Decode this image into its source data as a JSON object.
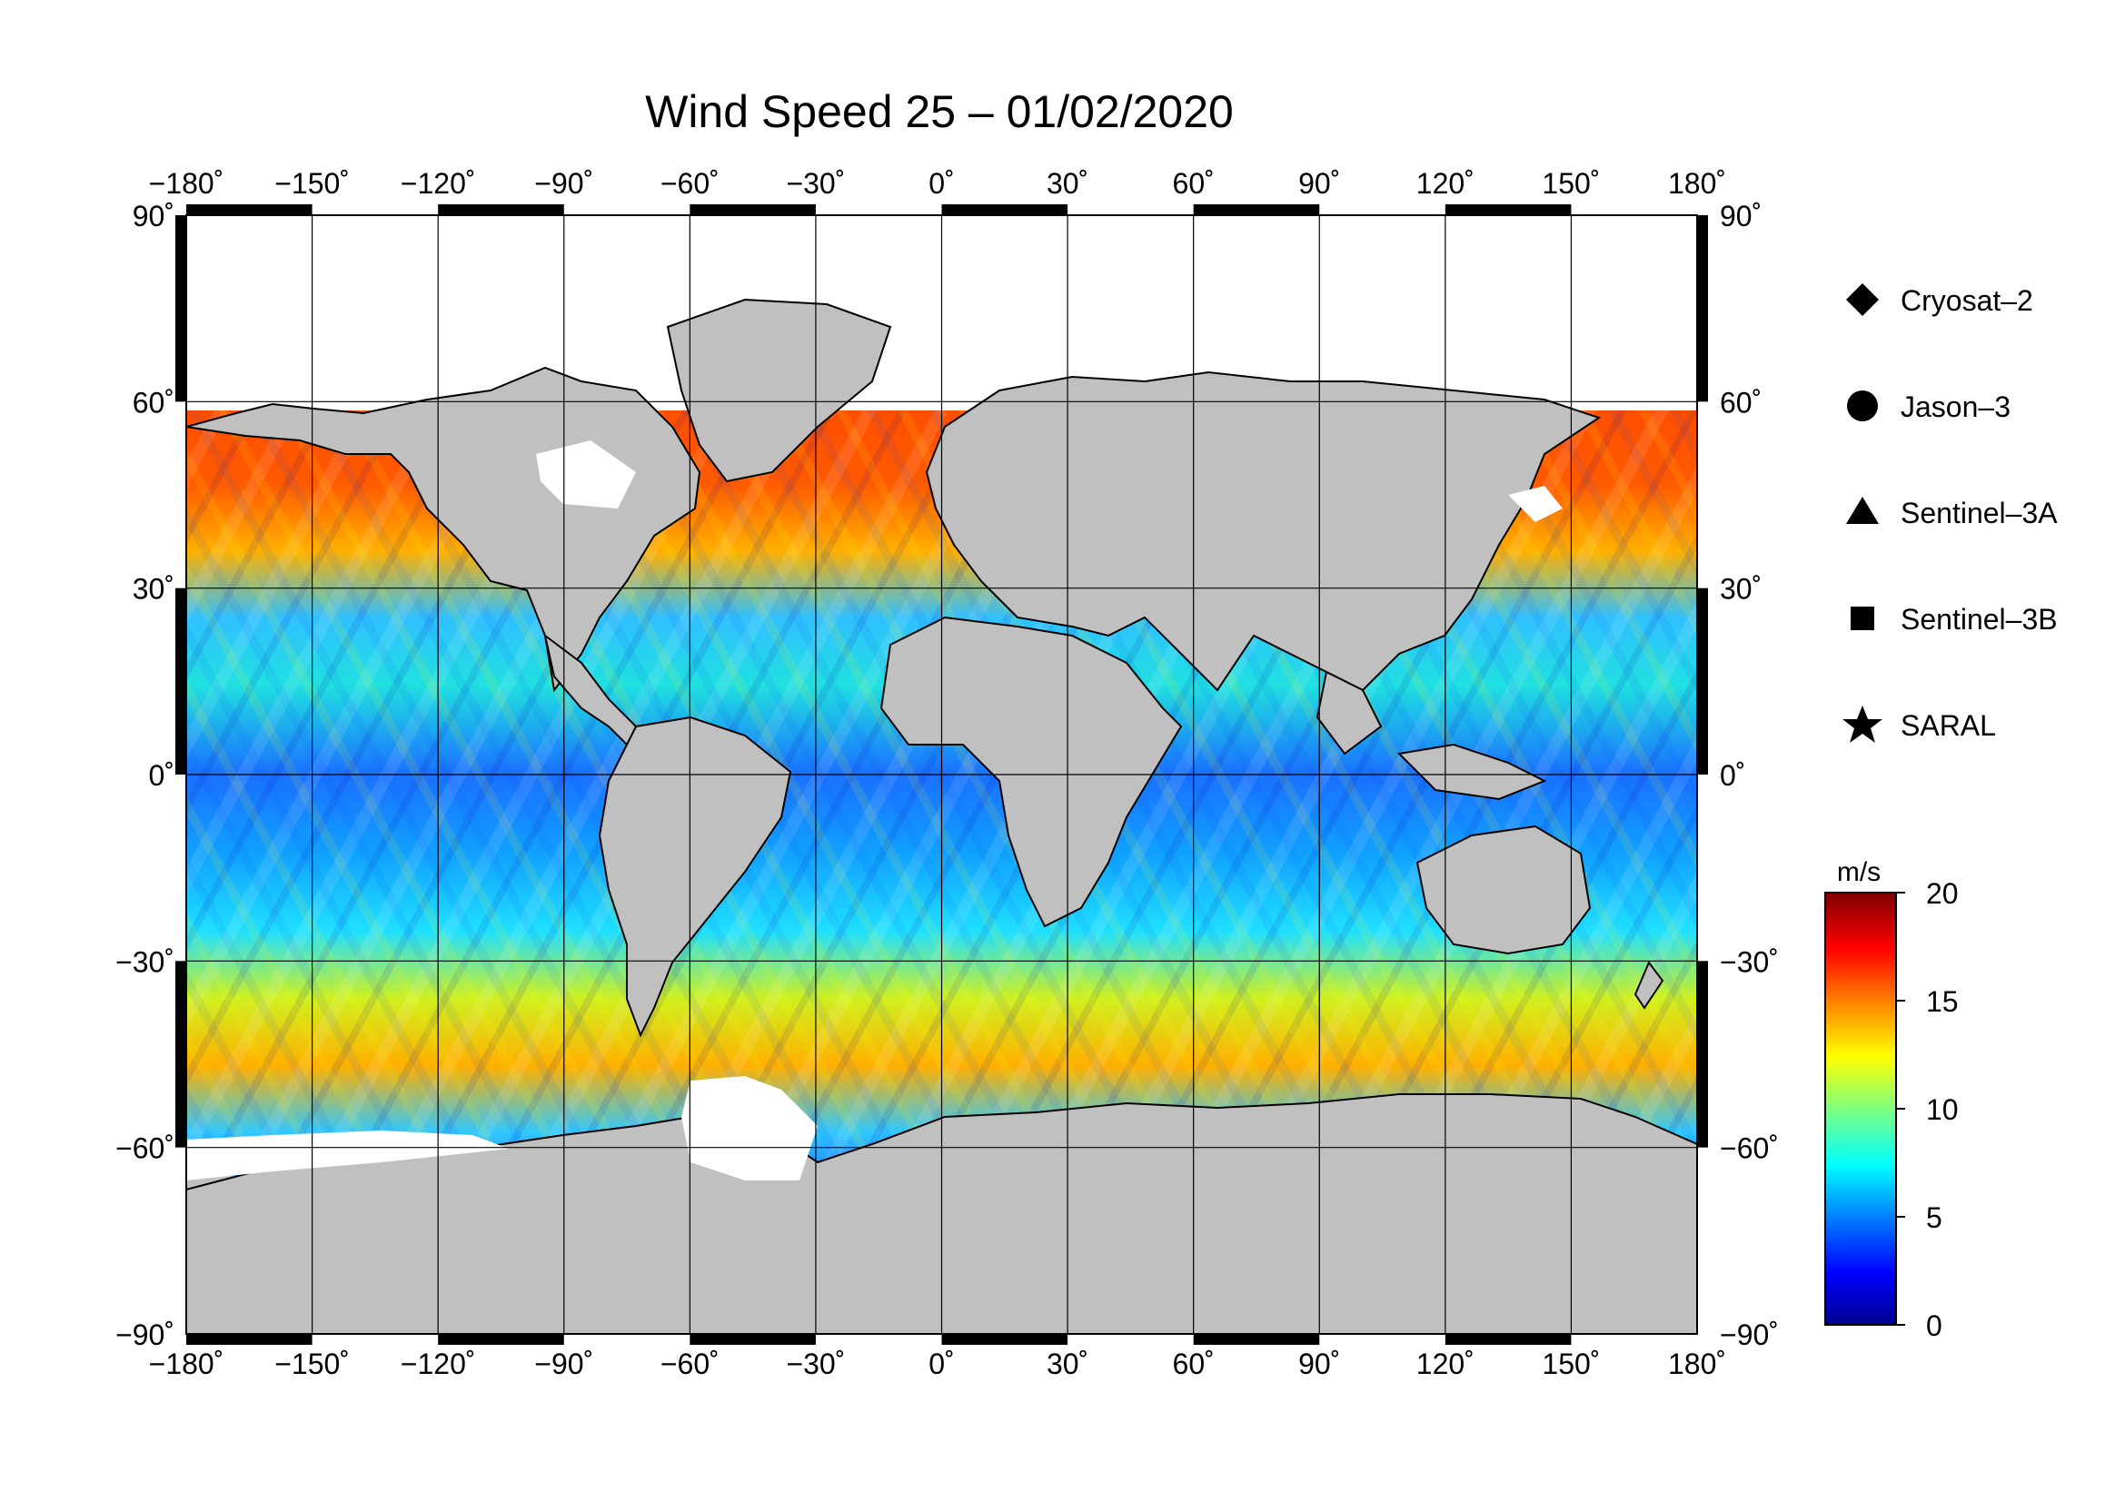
{
  "title": "Wind Speed 25 – 01/02/2020",
  "map": {
    "lon_ticks": [
      "−180˚",
      "−150˚",
      "−120˚",
      "−90˚",
      "−60˚",
      "−30˚",
      "0˚",
      "30˚",
      "60˚",
      "90˚",
      "120˚",
      "150˚",
      "180˚"
    ],
    "lon_values": [
      -180,
      -150,
      -120,
      -90,
      -60,
      -30,
      0,
      30,
      60,
      90,
      120,
      150,
      180
    ],
    "lat_ticks": [
      "90˚",
      "60˚",
      "30˚",
      "0˚",
      "−30˚",
      "−60˚",
      "−90˚"
    ],
    "lat_values": [
      90,
      60,
      30,
      0,
      -30,
      -60,
      -90
    ],
    "land_color": "#c0c0c0",
    "ice_color": "#ffffff",
    "projection": "equirectangular",
    "grid": true
  },
  "legend": {
    "items": [
      {
        "label": "Cryosat–2",
        "icon": "diamond-icon"
      },
      {
        "label": "Jason–3",
        "icon": "circle-icon"
      },
      {
        "label": "Sentinel–3A",
        "icon": "triangle-icon"
      },
      {
        "label": "Sentinel–3B",
        "icon": "square-icon"
      },
      {
        "label": "SARAL",
        "icon": "star-icon"
      }
    ]
  },
  "colorbar": {
    "unit": "m/s",
    "min": 0,
    "max": 20,
    "ticks": [
      "20",
      "15",
      "10",
      "5",
      "0"
    ],
    "tick_values": [
      20,
      15,
      10,
      5,
      0
    ],
    "colormap": [
      "#00008f",
      "#0000ff",
      "#0080ff",
      "#00ffff",
      "#80ff80",
      "#ffff00",
      "#ff8000",
      "#ff0000",
      "#800000"
    ]
  }
}
